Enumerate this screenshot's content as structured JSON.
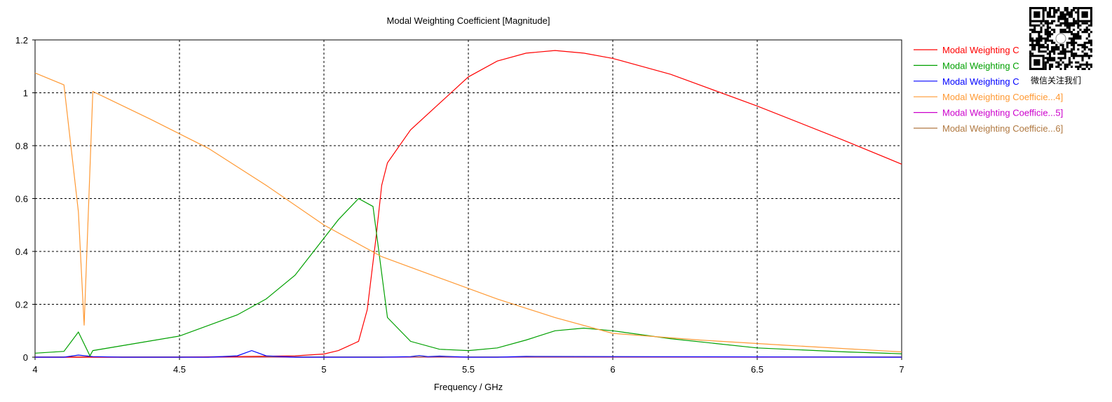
{
  "chart_data": {
    "type": "line",
    "title": "Modal Weighting Coefficient [Magnitude]",
    "xlabel": "Frequency / GHz",
    "ylabel": "",
    "xlim": [
      4,
      7
    ],
    "ylim": [
      0,
      1.2
    ],
    "xticks": [
      4,
      4.5,
      5,
      5.5,
      6,
      6.5,
      7
    ],
    "xtick_labels": [
      "4",
      "4.5",
      "5",
      "5.5",
      "6",
      "6.5",
      "7"
    ],
    "yticks": [
      0,
      0.2,
      0.4,
      0.6,
      0.8,
      1,
      1.2
    ],
    "ytick_labels": [
      "0",
      "0.2",
      "0.4",
      "0.6",
      "0.8",
      "1",
      "1.2"
    ],
    "grid": true,
    "legend_position": "right",
    "series": [
      {
        "name": "Modal Weighting C",
        "color": "#ff0000",
        "x": [
          4,
          4.5,
          4.9,
          5.0,
          5.05,
          5.08,
          5.12,
          5.15,
          5.18,
          5.2,
          5.22,
          5.3,
          5.4,
          5.5,
          5.6,
          5.7,
          5.8,
          5.9,
          6.0,
          6.2,
          6.5,
          6.8,
          7.0
        ],
        "y": [
          0,
          0,
          0.005,
          0.012,
          0.025,
          0.04,
          0.06,
          0.18,
          0.45,
          0.65,
          0.735,
          0.86,
          0.96,
          1.06,
          1.12,
          1.15,
          1.16,
          1.15,
          1.13,
          1.07,
          0.95,
          0.82,
          0.73
        ]
      },
      {
        "name": "Modal Weighting C",
        "color": "#00a000",
        "x": [
          4,
          4.1,
          4.15,
          4.19,
          4.2,
          4.5,
          4.7,
          4.8,
          4.9,
          5.0,
          5.05,
          5.12,
          5.17,
          5.22,
          5.3,
          5.4,
          5.5,
          5.6,
          5.7,
          5.8,
          5.9,
          6.0,
          6.2,
          6.5,
          6.8,
          7.0
        ],
        "y": [
          0.015,
          0.022,
          0.095,
          0.005,
          0.025,
          0.08,
          0.16,
          0.22,
          0.31,
          0.45,
          0.52,
          0.6,
          0.57,
          0.15,
          0.06,
          0.03,
          0.025,
          0.035,
          0.065,
          0.1,
          0.11,
          0.1,
          0.07,
          0.035,
          0.02,
          0.013
        ]
      },
      {
        "name": "Modal Weighting C",
        "color": "#0000ff",
        "x": [
          4,
          4.1,
          4.15,
          4.2,
          4.3,
          4.6,
          4.7,
          4.75,
          4.8,
          4.9,
          5.2,
          5.3,
          5.33,
          5.36,
          5.4,
          5.5,
          5.6,
          5.7,
          7.0
        ],
        "y": [
          0,
          0,
          0.008,
          0.002,
          0,
          0,
          0.005,
          0.025,
          0.005,
          0,
          0,
          0.002,
          0.006,
          0.002,
          0.004,
          0,
          0,
          0.003,
          0
        ]
      },
      {
        "name": "Modal Weighting Coefficie...4]",
        "color": "#ff9933",
        "x": [
          4,
          4.1,
          4.15,
          4.17,
          4.2,
          4.4,
          4.6,
          4.8,
          5.0,
          5.2,
          5.4,
          5.6,
          5.8,
          6.0,
          6.3,
          6.6,
          7.0
        ],
        "y": [
          1.075,
          1.03,
          0.55,
          0.12,
          1.005,
          0.9,
          0.79,
          0.65,
          0.5,
          0.38,
          0.3,
          0.22,
          0.15,
          0.09,
          0.065,
          0.045,
          0.02
        ]
      },
      {
        "name": "Modal Weighting Coefficie...5]",
        "color": "#cc00cc",
        "x": [
          4,
          7
        ],
        "y": [
          0,
          0
        ]
      },
      {
        "name": "Modal Weighting Coefficie...6]",
        "color": "#b07840",
        "x": [
          4,
          7
        ],
        "y": [
          0.001,
          0.001
        ]
      }
    ]
  },
  "overlay": {
    "wechat_text": "微信关注我们",
    "qr_icon": "qr-code-icon"
  }
}
